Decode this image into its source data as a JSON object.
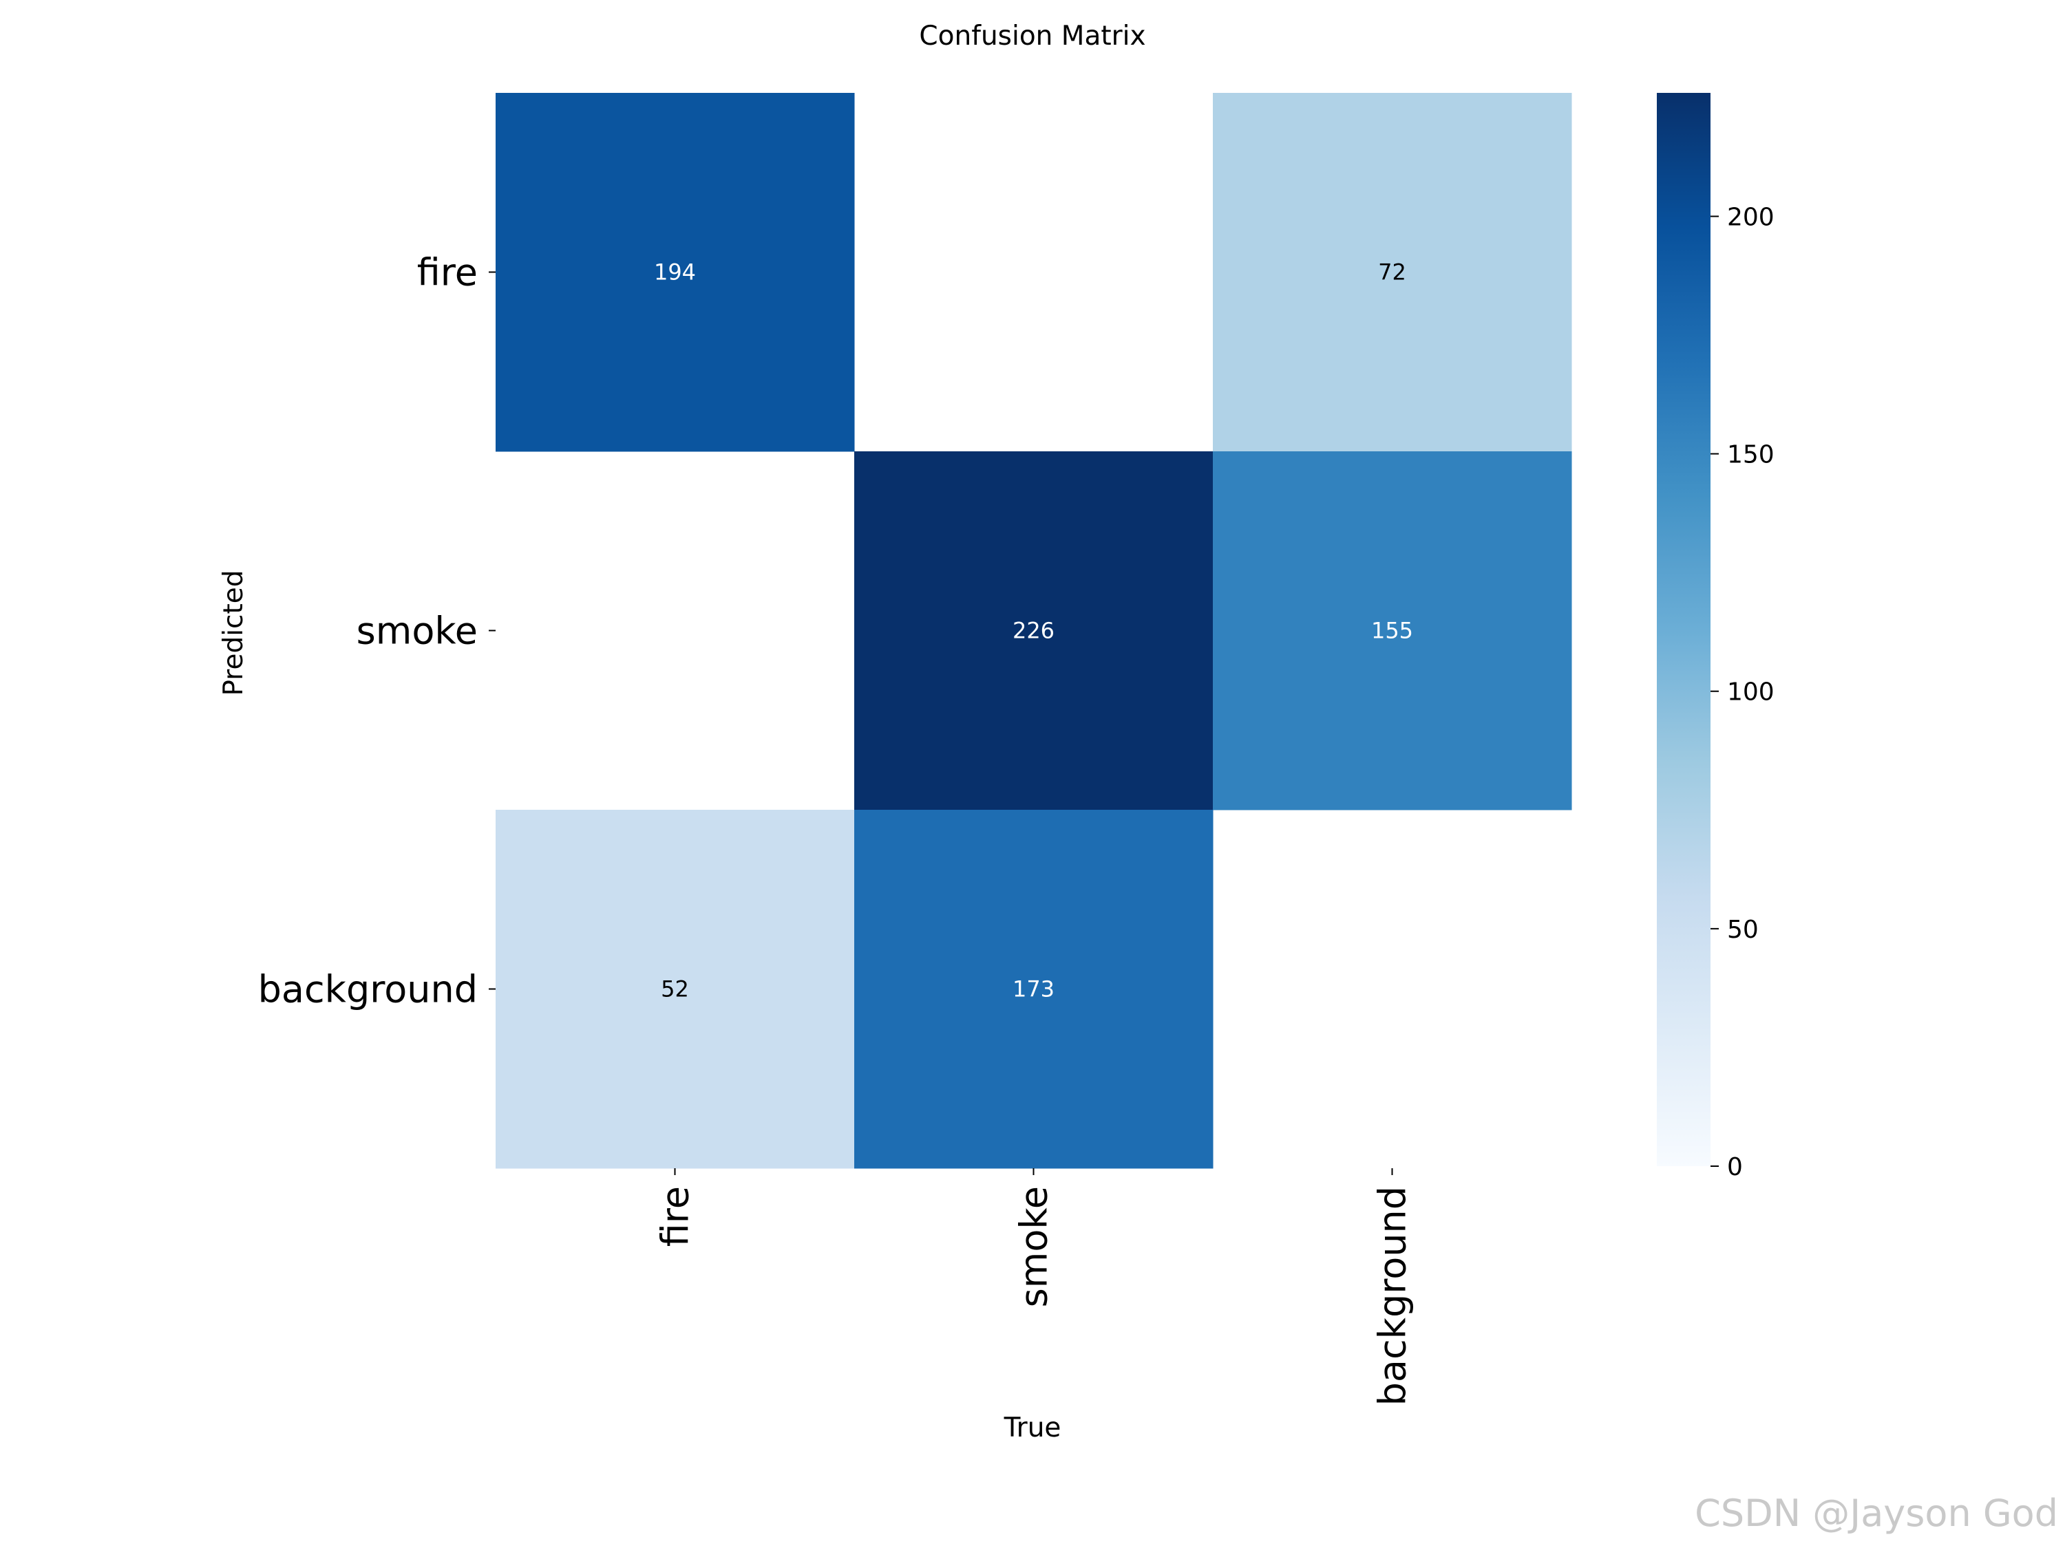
{
  "chart_data": {
    "type": "heatmap",
    "title": "Confusion Matrix",
    "xlabel": "True",
    "ylabel": "Predicted",
    "x_categories": [
      "fire",
      "smoke",
      "background"
    ],
    "y_categories": [
      "fire",
      "smoke",
      "background"
    ],
    "values": [
      [
        194,
        null,
        72
      ],
      [
        null,
        226,
        155
      ],
      [
        52,
        173,
        null
      ]
    ],
    "colorbar": {
      "colormap": "Blues",
      "range": [
        0,
        226
      ],
      "ticks": [
        0,
        50,
        100,
        150,
        200
      ]
    },
    "colors": {
      "low": "#f7fbff",
      "high": "#08306b",
      "dark_text_color": "#000000",
      "light_text_color": "#ffffff"
    }
  },
  "watermark": "CSDN @Jayson God"
}
